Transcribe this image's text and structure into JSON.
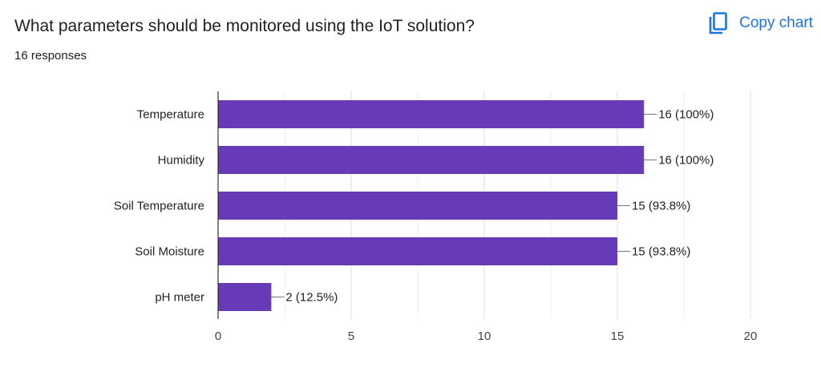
{
  "header": {
    "title": "What parameters should be monitored using the IoT solution?",
    "responses": "16 responses",
    "copy_chart_label": "Copy chart",
    "copy_chart_icon": "copy-icon",
    "accent_color": "#1a73e8"
  },
  "chart_data": {
    "type": "bar",
    "orientation": "horizontal",
    "categories": [
      "Temperature",
      "Humidity",
      "Soil Temperature",
      "Soil Moisture",
      "pH meter"
    ],
    "values": [
      16,
      16,
      15,
      15,
      2
    ],
    "data_labels": [
      "16 (100%)",
      "16 (100%)",
      "15 (93.8%)",
      "15 (93.8%)",
      "2 (12.5%)"
    ],
    "xlim": [
      0,
      20
    ],
    "x_ticks": [
      0,
      5,
      10,
      15,
      20
    ],
    "grid": true,
    "bar_color": "#673ab7",
    "xlabel": "",
    "ylabel": ""
  }
}
